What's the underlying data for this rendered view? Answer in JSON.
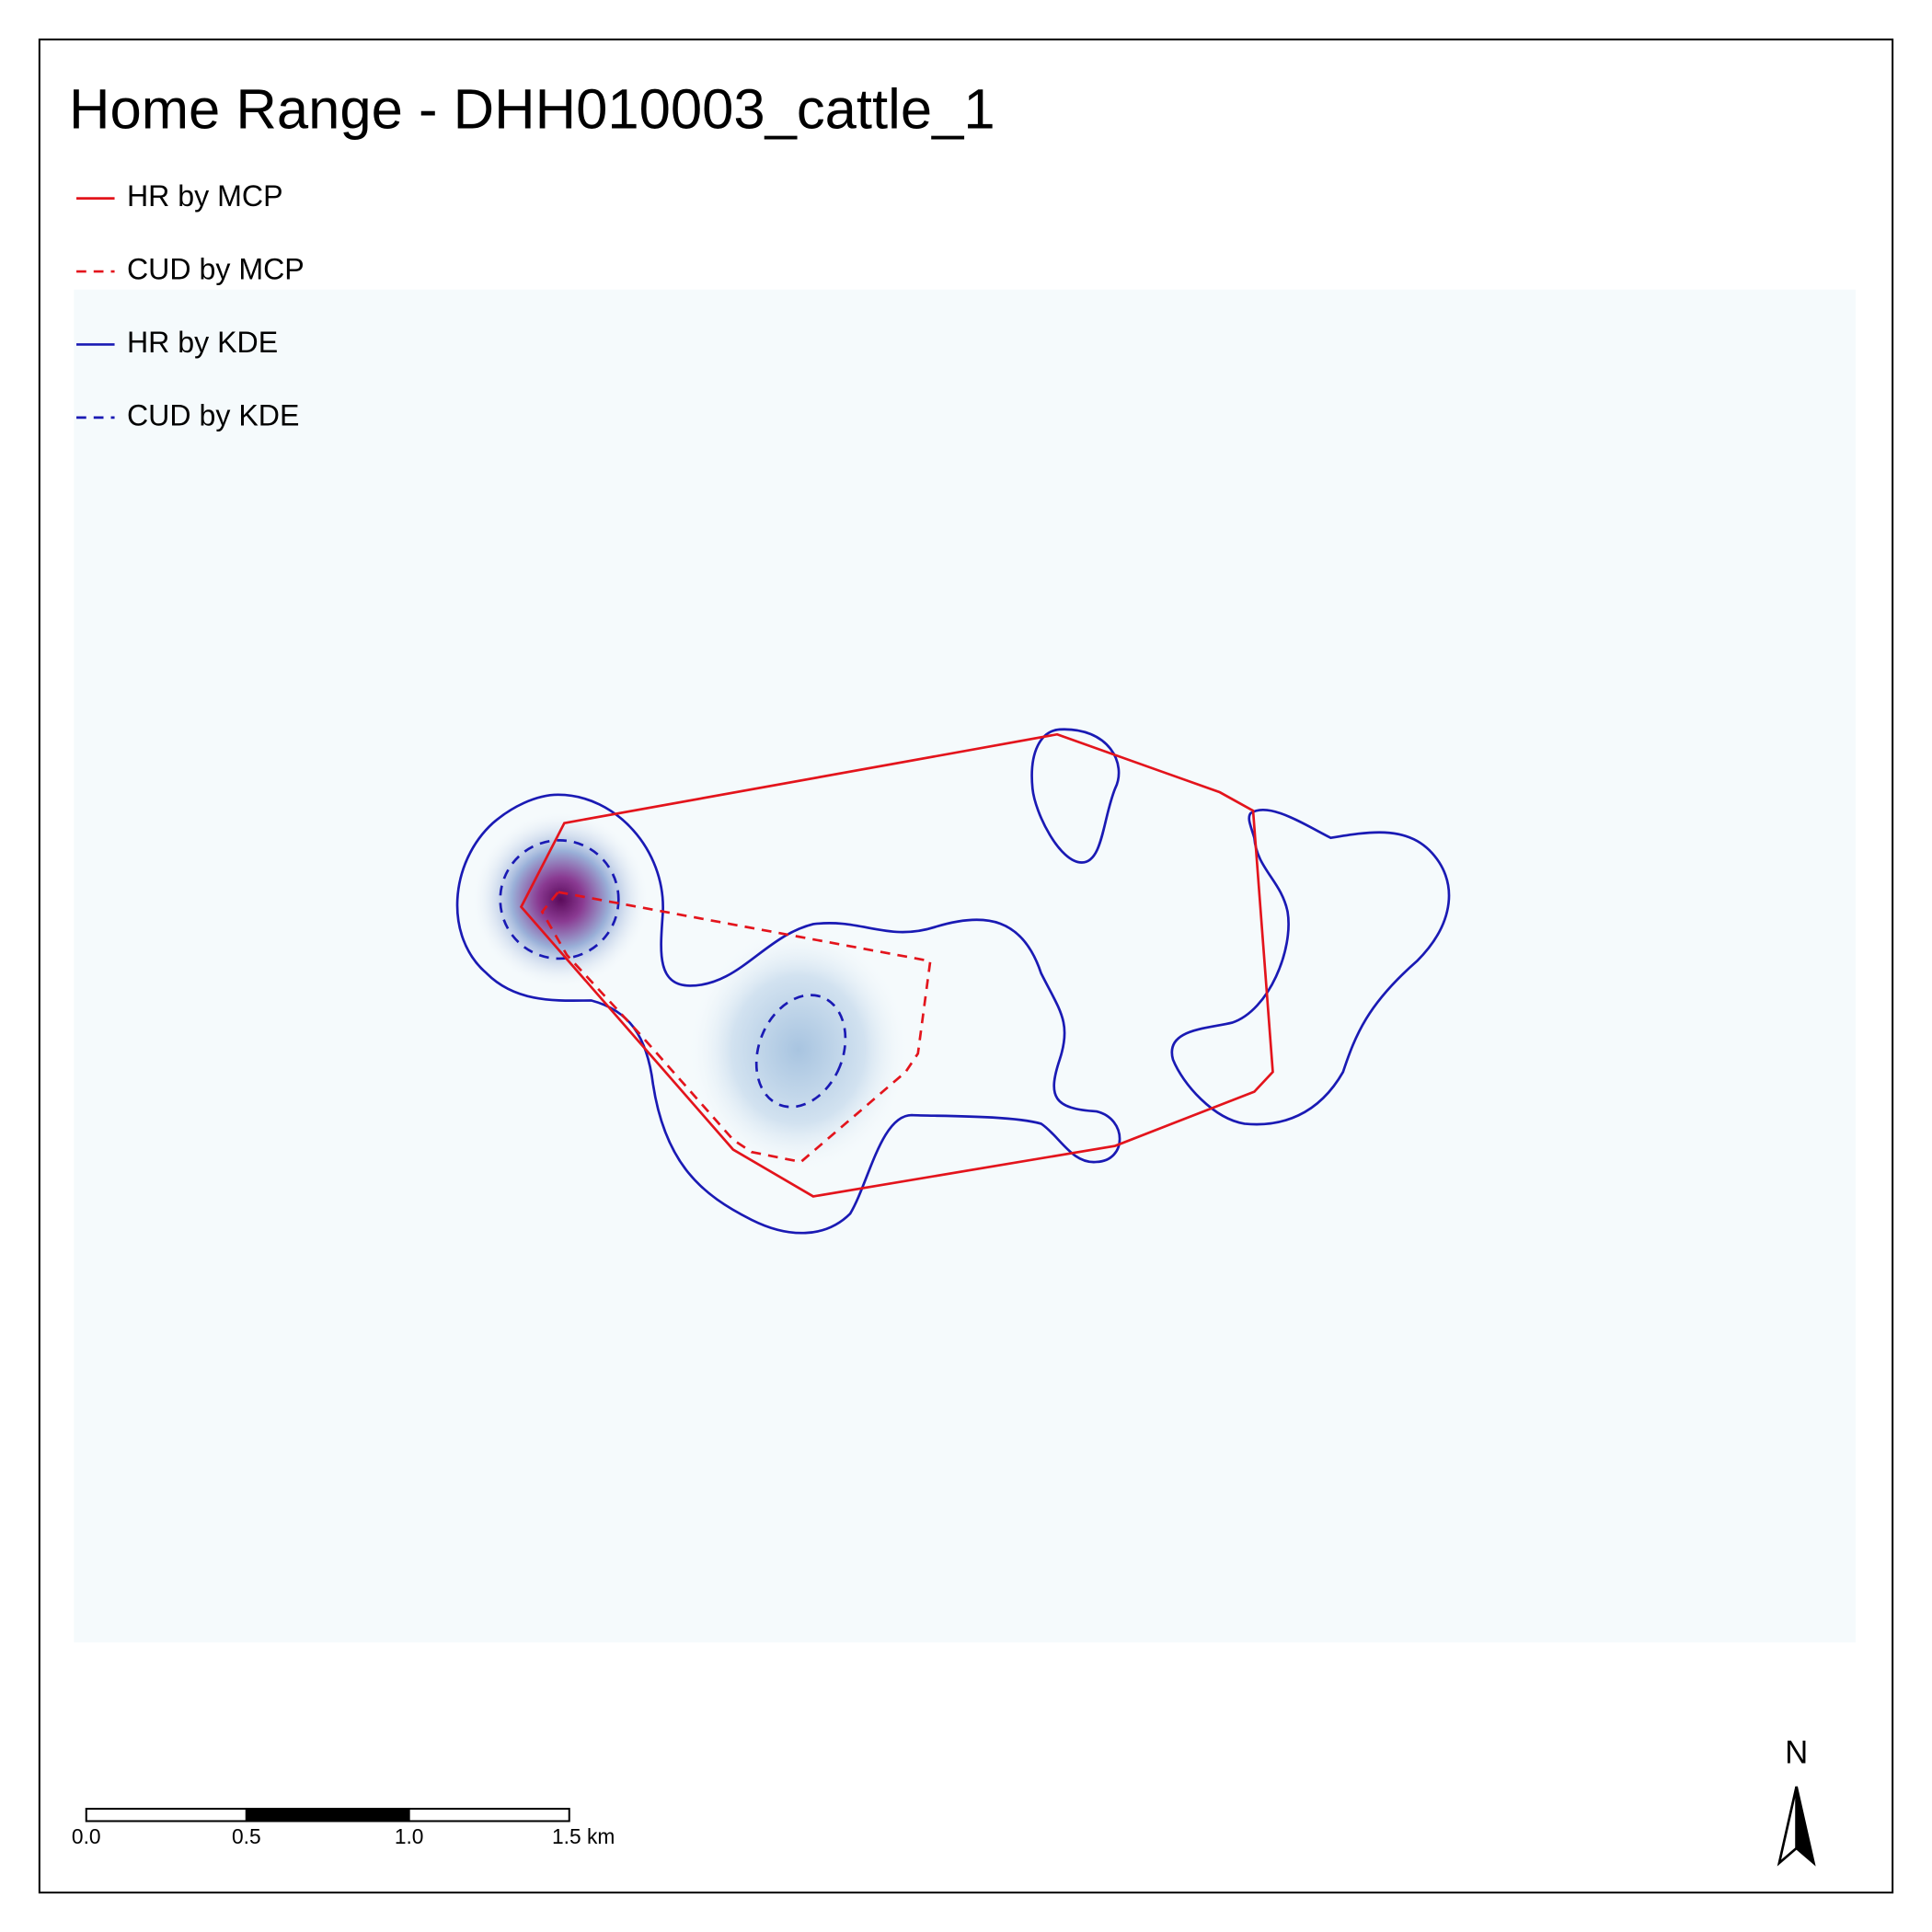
{
  "title": "Home Range -  DHH010003_cattle_1",
  "legend": [
    {
      "label": "HR by MCP",
      "color": "#e3141c",
      "dashed": false
    },
    {
      "label": "CUD by MCP",
      "color": "#e3141c",
      "dashed": true
    },
    {
      "label": "HR by KDE",
      "color": "#1a1ab4",
      "dashed": false
    },
    {
      "label": "CUD by KDE",
      "color": "#1a1ab4",
      "dashed": true
    }
  ],
  "scale_bar": {
    "labels": [
      "0.0",
      "0.5",
      "1.0",
      "1.5 km"
    ]
  },
  "north_arrow": {
    "label": "N"
  }
}
